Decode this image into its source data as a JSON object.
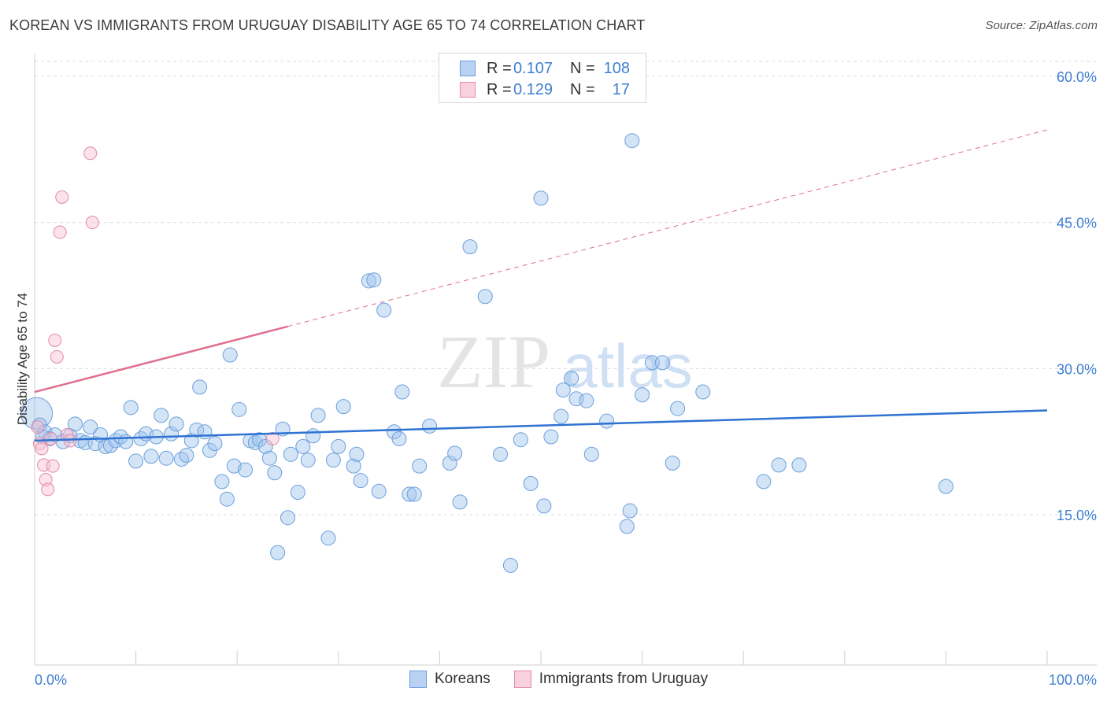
{
  "title": "KOREAN VS IMMIGRANTS FROM URUGUAY DISABILITY AGE 65 TO 74 CORRELATION CHART",
  "source": "Source: ZipAtlas.com",
  "watermark": {
    "zip": "ZIP",
    "atlas": "atlas"
  },
  "legend": {
    "rows": [
      {
        "r_label": "R =",
        "r_value": "0.107",
        "n_label": "N =",
        "n_value": "108",
        "color": "#a9c8f0",
        "border": "#5e94d8"
      },
      {
        "r_label": "R =",
        "r_value": "0.129",
        "n_label": "N =",
        "n_value": "17",
        "color": "#f8c6d6",
        "border": "#e58aa8"
      }
    ]
  },
  "bottom_legend": {
    "series_a": "Koreans",
    "series_b": "Immigrants from Uruguay"
  },
  "colors": {
    "blue_fill": "rgba(160,195,238,0.45)",
    "blue_stroke": "#6b9fdc",
    "blue_line": "#2e72d2",
    "pink_fill": "rgba(248,190,208,0.45)",
    "pink_stroke": "#e48aa8",
    "pink_line": "#e0708f",
    "grid": "#dcdcdc",
    "tick_text": "#3f7fd0"
  },
  "chart_data": {
    "type": "scatter",
    "title": "KOREAN VS IMMIGRANTS FROM URUGUAY DISABILITY AGE 65 TO 74 CORRELATION CHART",
    "ylabel": "Disability Age 65 to 74",
    "xlabel": "",
    "xlim": [
      0,
      100
    ],
    "ylim": [
      0,
      62
    ],
    "x_tick_labels": [
      "0.0%",
      "100.0%"
    ],
    "y_ticks": [
      15,
      30,
      45,
      60
    ],
    "y_tick_labels": [
      "15.0%",
      "30.0%",
      "45.0%",
      "60.0%"
    ],
    "series": [
      {
        "name": "Koreans",
        "trend": {
          "x0": 0,
          "y0": 22.6,
          "x1": 100,
          "y1": 25.7,
          "dashed_from": null
        },
        "points": [
          [
            0.2,
            25.4
          ],
          [
            0.5,
            24.2
          ],
          [
            1.0,
            23.5
          ],
          [
            1.5,
            22.8
          ],
          [
            2.0,
            23.2
          ],
          [
            2.8,
            22.5
          ],
          [
            3.5,
            23.1
          ],
          [
            4.0,
            24.3
          ],
          [
            4.5,
            22.6
          ],
          [
            5.0,
            22.4
          ],
          [
            5.5,
            24.0
          ],
          [
            6.0,
            22.3
          ],
          [
            6.5,
            23.2
          ],
          [
            7.0,
            22.0
          ],
          [
            7.5,
            22.1
          ],
          [
            8.0,
            22.6
          ],
          [
            8.5,
            23.0
          ],
          [
            9.0,
            22.5
          ],
          [
            9.5,
            26.0
          ],
          [
            10.0,
            20.5
          ],
          [
            10.5,
            22.8
          ],
          [
            11.0,
            23.3
          ],
          [
            11.5,
            21.0
          ],
          [
            12.0,
            23.0
          ],
          [
            12.5,
            25.2
          ],
          [
            13.0,
            20.8
          ],
          [
            13.5,
            23.3
          ],
          [
            14.0,
            24.3
          ],
          [
            14.5,
            20.7
          ],
          [
            15.0,
            21.1
          ],
          [
            15.5,
            22.6
          ],
          [
            16.0,
            23.7
          ],
          [
            16.3,
            28.1
          ],
          [
            16.8,
            23.5
          ],
          [
            17.3,
            21.6
          ],
          [
            17.8,
            22.3
          ],
          [
            18.5,
            18.4
          ],
          [
            19.0,
            16.6
          ],
          [
            19.3,
            31.4
          ],
          [
            19.7,
            20.0
          ],
          [
            20.2,
            25.8
          ],
          [
            20.8,
            19.6
          ],
          [
            21.3,
            22.6
          ],
          [
            21.8,
            22.4
          ],
          [
            22.2,
            22.7
          ],
          [
            22.8,
            22.0
          ],
          [
            23.2,
            20.8
          ],
          [
            23.7,
            19.3
          ],
          [
            24.5,
            23.8
          ],
          [
            25.0,
            14.7
          ],
          [
            25.3,
            21.2
          ],
          [
            26.0,
            17.3
          ],
          [
            26.5,
            22.0
          ],
          [
            27.0,
            20.6
          ],
          [
            27.5,
            23.1
          ],
          [
            28.0,
            25.2
          ],
          [
            29.0,
            12.6
          ],
          [
            29.5,
            20.6
          ],
          [
            30.0,
            22.0
          ],
          [
            30.5,
            26.1
          ],
          [
            31.5,
            20.0
          ],
          [
            31.8,
            21.2
          ],
          [
            32.2,
            18.5
          ],
          [
            24.0,
            11.1
          ],
          [
            33.0,
            39.0
          ],
          [
            33.5,
            39.1
          ],
          [
            34.0,
            17.4
          ],
          [
            34.5,
            36.0
          ],
          [
            35.5,
            23.5
          ],
          [
            36.0,
            22.8
          ],
          [
            36.3,
            27.6
          ],
          [
            37.0,
            17.1
          ],
          [
            37.5,
            17.1
          ],
          [
            38.0,
            20.0
          ],
          [
            39.0,
            24.1
          ],
          [
            41.0,
            20.3
          ],
          [
            41.5,
            21.3
          ],
          [
            42.0,
            16.3
          ],
          [
            43.0,
            42.5
          ],
          [
            44.5,
            37.4
          ],
          [
            46.0,
            21.2
          ],
          [
            47.0,
            9.8
          ],
          [
            48.0,
            22.7
          ],
          [
            49.0,
            18.2
          ],
          [
            50.0,
            47.5
          ],
          [
            50.3,
            15.9
          ],
          [
            51.0,
            23.0
          ],
          [
            52.0,
            25.1
          ],
          [
            52.2,
            27.8
          ],
          [
            53.0,
            29.0
          ],
          [
            53.5,
            26.9
          ],
          [
            54.5,
            26.7
          ],
          [
            55.0,
            21.2
          ],
          [
            56.5,
            24.6
          ],
          [
            58.5,
            13.8
          ],
          [
            58.8,
            15.4
          ],
          [
            59.0,
            53.4
          ],
          [
            60.0,
            27.3
          ],
          [
            61.0,
            30.6
          ],
          [
            62.0,
            30.6
          ],
          [
            63.0,
            20.3
          ],
          [
            63.5,
            25.9
          ],
          [
            66.0,
            27.6
          ],
          [
            72.0,
            18.4
          ],
          [
            73.5,
            20.1
          ],
          [
            75.5,
            20.1
          ],
          [
            90.0,
            17.9
          ],
          [
            0.8,
            23.0
          ]
        ]
      },
      {
        "name": "Immigrants from Uruguay",
        "trend": {
          "x0": 0,
          "y0": 27.6,
          "x1": 100,
          "y1": 54.5,
          "solid_until": 25
        },
        "points": [
          [
            0.3,
            24.0
          ],
          [
            0.5,
            22.3
          ],
          [
            0.7,
            21.8
          ],
          [
            0.9,
            20.1
          ],
          [
            1.1,
            18.6
          ],
          [
            1.3,
            17.6
          ],
          [
            1.6,
            22.8
          ],
          [
            1.8,
            20.0
          ],
          [
            2.0,
            32.9
          ],
          [
            2.2,
            31.2
          ],
          [
            2.5,
            44.0
          ],
          [
            2.7,
            47.6
          ],
          [
            3.2,
            23.2
          ],
          [
            3.5,
            22.6
          ],
          [
            5.5,
            52.1
          ],
          [
            5.7,
            45.0
          ],
          [
            23.5,
            22.8
          ]
        ]
      }
    ]
  }
}
